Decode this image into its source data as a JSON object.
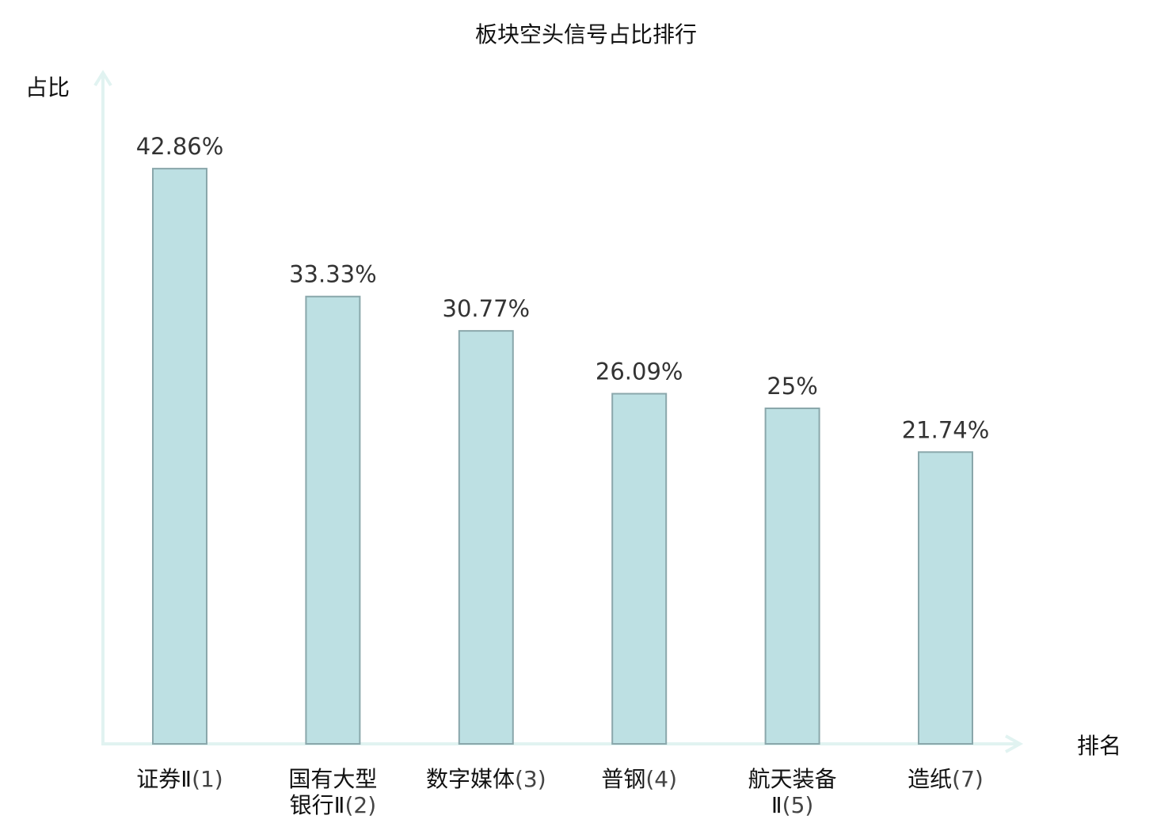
{
  "chart_data": {
    "type": "bar",
    "title": "板块空头信号占比排行",
    "ylabel": "占比",
    "xlabel": "排名",
    "ylim": [
      0,
      50
    ],
    "grid": false,
    "categories": [
      {
        "lines": [
          {
            "name": "证券Ⅱ",
            "rank": "(1)"
          }
        ],
        "highlight": false
      },
      {
        "lines": [
          {
            "name": "国有大型",
            "rank": ""
          },
          {
            "name": "银行Ⅱ",
            "rank": "(2)"
          }
        ],
        "highlight": false
      },
      {
        "lines": [
          {
            "name": "数字媒体",
            "rank": "(3)"
          }
        ],
        "highlight": false
      },
      {
        "lines": [
          {
            "name": "普钢",
            "rank": "(4)"
          }
        ],
        "highlight": false
      },
      {
        "lines": [
          {
            "name": "航天装备",
            "rank": ""
          },
          {
            "name": "Ⅱ",
            "rank": "(5)"
          }
        ],
        "highlight": false
      },
      {
        "lines": [
          {
            "name": "造纸",
            "rank": "(7)"
          }
        ],
        "highlight": true
      }
    ],
    "values": [
      42.86,
      33.33,
      30.77,
      26.09,
      25,
      21.74
    ],
    "value_labels": [
      "42.86%",
      "33.33%",
      "30.77%",
      "26.09%",
      "25%",
      "21.74%"
    ],
    "colors": {
      "bar_fill": "#bde0e3",
      "bar_stroke": "#8aa7ab",
      "axis": "#e1f3f1",
      "highlight": "#e02020",
      "text": "#111111"
    }
  }
}
